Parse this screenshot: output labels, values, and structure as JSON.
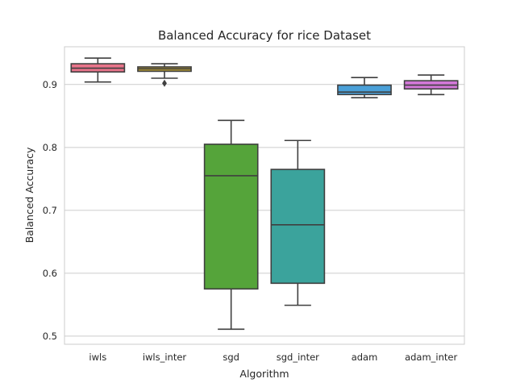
{
  "chart_data": {
    "type": "box",
    "title": "Balanced Accuracy for rice Dataset",
    "xlabel": "Algorithm",
    "ylabel": "Balanced Accuracy",
    "ylim": [
      0.487,
      0.96
    ],
    "yticks": [
      0.5,
      0.6,
      0.7,
      0.8,
      0.9
    ],
    "ytick_labels": [
      "0.5",
      "0.6",
      "0.7",
      "0.8",
      "0.9"
    ],
    "grid": "horizontal",
    "categories": [
      "iwls",
      "iwls_inter",
      "sgd",
      "sgd_inter",
      "adam",
      "adam_inter"
    ],
    "boxes": [
      {
        "name": "iwls",
        "whisker_low": 0.904,
        "q1": 0.92,
        "median": 0.926,
        "q3": 0.933,
        "whisker_high": 0.942,
        "outliers": [],
        "color": "#e8748a"
      },
      {
        "name": "iwls_inter",
        "whisker_low": 0.91,
        "q1": 0.921,
        "median": 0.925,
        "q3": 0.928,
        "whisker_high": 0.933,
        "outliers": [
          0.902
        ],
        "color": "#b59a33"
      },
      {
        "name": "sgd",
        "whisker_low": 0.511,
        "q1": 0.575,
        "median": 0.755,
        "q3": 0.805,
        "whisker_high": 0.843,
        "outliers": [],
        "color": "#55a43a"
      },
      {
        "name": "sgd_inter",
        "whisker_low": 0.549,
        "q1": 0.584,
        "median": 0.677,
        "q3": 0.765,
        "whisker_high": 0.811,
        "outliers": [],
        "color": "#3ba39c"
      },
      {
        "name": "adam",
        "whisker_low": 0.879,
        "q1": 0.884,
        "median": 0.888,
        "q3": 0.899,
        "whisker_high": 0.911,
        "outliers": [],
        "color": "#4aa0d8"
      },
      {
        "name": "adam_inter",
        "whisker_low": 0.884,
        "q1": 0.893,
        "median": 0.899,
        "q3": 0.906,
        "whisker_high": 0.915,
        "outliers": [],
        "color": "#d278d8"
      }
    ]
  }
}
